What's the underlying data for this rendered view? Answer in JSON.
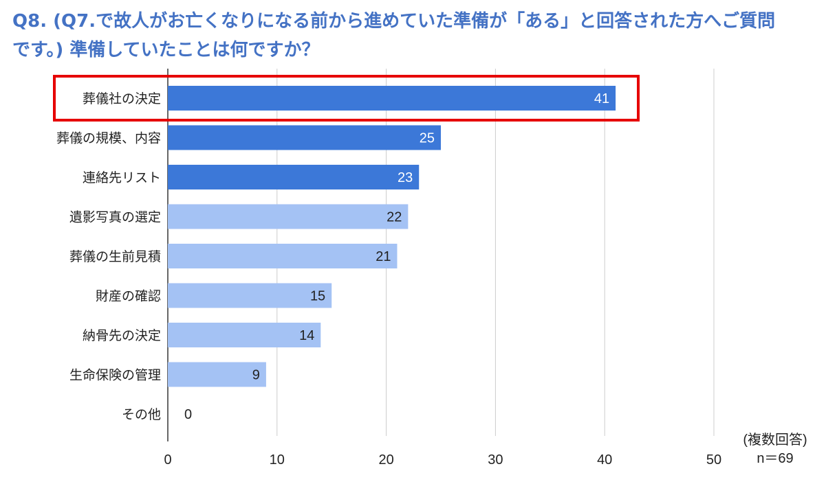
{
  "title": {
    "line1": "Q8. (Q7.で故人がお亡くなりになる前から進めていた準備が「ある」と回答された方へご質問",
    "line2": "です。) 準備していたことは何ですか？"
  },
  "note": {
    "line1": "(複数回答)",
    "line2": "n＝69"
  },
  "colors": {
    "dark_bar": "#3c78d8",
    "light_bar": "#a4c2f4",
    "highlight_border": "#e60000",
    "grid": "#cccccc",
    "axis": "#333333",
    "title": "#4472c4"
  },
  "chart_data": {
    "type": "bar",
    "orientation": "horizontal",
    "categories": [
      "葬儀社の決定",
      "葬儀の規模、内容",
      "連絡先リスト",
      "遺影写真の選定",
      "葬儀の生前見積",
      "財産の確認",
      "納骨先の決定",
      "生命保険の管理",
      "その他"
    ],
    "values": [
      41,
      25,
      23,
      22,
      21,
      15,
      14,
      9,
      0
    ],
    "emphasis": [
      "dark",
      "dark",
      "dark",
      "light",
      "light",
      "light",
      "light",
      "light",
      "light"
    ],
    "highlighted_category": "葬儀社の決定",
    "xlim": [
      0,
      50
    ],
    "xticks": [
      0,
      10,
      20,
      30,
      40,
      50
    ],
    "grid": true,
    "title": "",
    "xlabel": "",
    "ylabel": ""
  }
}
